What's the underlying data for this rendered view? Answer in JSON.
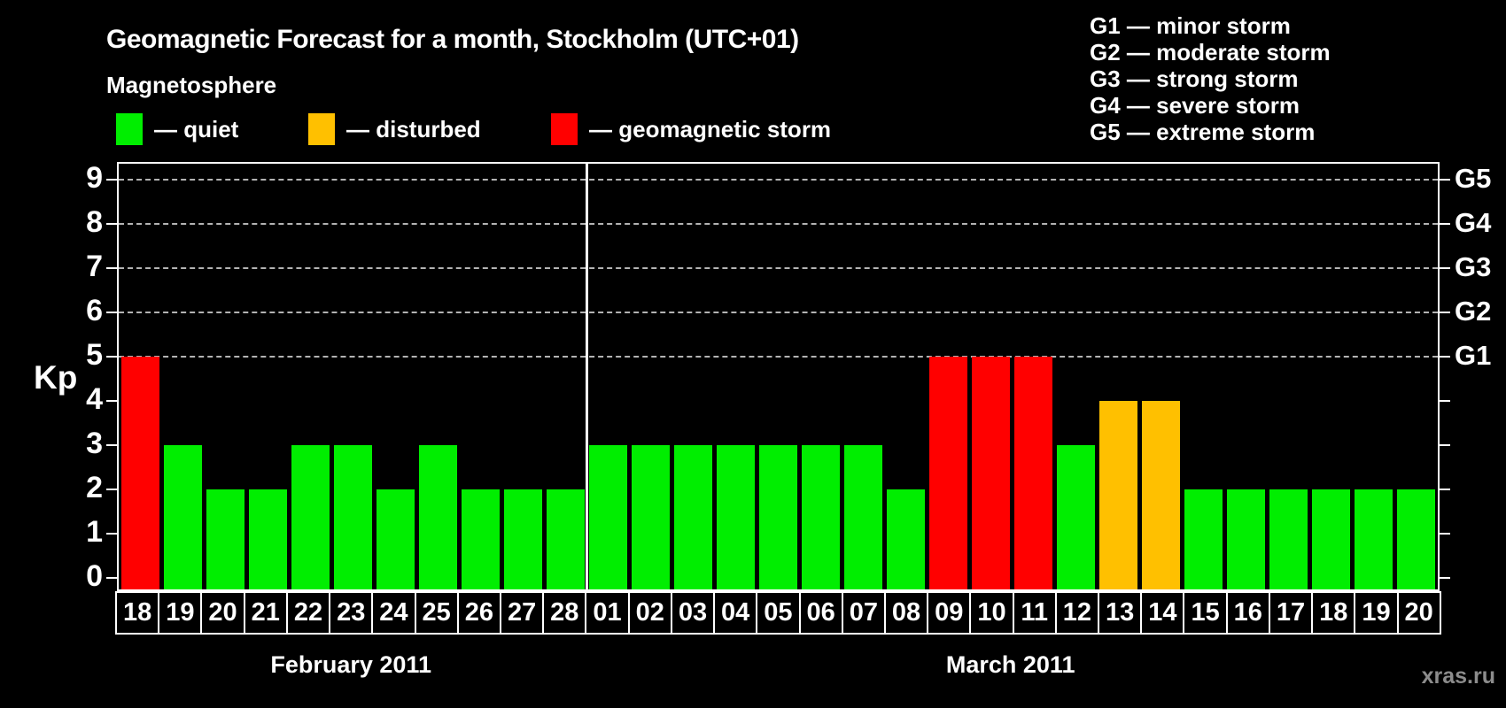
{
  "title": "Geomagnetic Forecast for a month, Stockholm (UTC+01)",
  "legend": {
    "heading": "Magnetosphere",
    "items": [
      {
        "name": "quiet",
        "label": "— quiet",
        "color": "#00ee00"
      },
      {
        "name": "disturbed",
        "label": "— disturbed",
        "color": "#ffc000"
      },
      {
        "name": "storm",
        "label": "— geomagnetic storm",
        "color": "#ff0000"
      }
    ]
  },
  "g_scale_legend": [
    "G1 — minor storm",
    "G2 — moderate storm",
    "G3 — strong storm",
    "G4 — severe storm",
    "G5 — extreme storm"
  ],
  "watermark": "xras.ru",
  "chart_data": {
    "type": "bar",
    "title": "Geomagnetic Forecast for a month, Stockholm (UTC+01)",
    "ylabel": "Kp",
    "ylim": [
      -0.3,
      9.4
    ],
    "yticks": [
      0,
      1,
      2,
      3,
      4,
      5,
      6,
      7,
      8,
      9
    ],
    "gridline_levels": [
      5,
      6,
      7,
      8,
      9
    ],
    "grid": "dashed horizontal at G-storm levels only",
    "legend_position": "top",
    "right_axis_labels": [
      {
        "level": 5,
        "label": "G1"
      },
      {
        "level": 6,
        "label": "G2"
      },
      {
        "level": 7,
        "label": "G3"
      },
      {
        "level": 8,
        "label": "G4"
      },
      {
        "level": 9,
        "label": "G5"
      }
    ],
    "status_colors": {
      "quiet": "#00ee00",
      "disturbed": "#ffc000",
      "storm": "#ff0000"
    },
    "months": [
      {
        "label": "February 2011",
        "days": [
          {
            "day": "18",
            "kp": 5,
            "status": "storm"
          },
          {
            "day": "19",
            "kp": 3,
            "status": "quiet"
          },
          {
            "day": "20",
            "kp": 2,
            "status": "quiet"
          },
          {
            "day": "21",
            "kp": 2,
            "status": "quiet"
          },
          {
            "day": "22",
            "kp": 3,
            "status": "quiet"
          },
          {
            "day": "23",
            "kp": 3,
            "status": "quiet"
          },
          {
            "day": "24",
            "kp": 2,
            "status": "quiet"
          },
          {
            "day": "25",
            "kp": 3,
            "status": "quiet"
          },
          {
            "day": "26",
            "kp": 2,
            "status": "quiet"
          },
          {
            "day": "27",
            "kp": 2,
            "status": "quiet"
          },
          {
            "day": "28",
            "kp": 2,
            "status": "quiet"
          }
        ]
      },
      {
        "label": "March 2011",
        "days": [
          {
            "day": "01",
            "kp": 3,
            "status": "quiet"
          },
          {
            "day": "02",
            "kp": 3,
            "status": "quiet"
          },
          {
            "day": "03",
            "kp": 3,
            "status": "quiet"
          },
          {
            "day": "04",
            "kp": 3,
            "status": "quiet"
          },
          {
            "day": "05",
            "kp": 3,
            "status": "quiet"
          },
          {
            "day": "06",
            "kp": 3,
            "status": "quiet"
          },
          {
            "day": "07",
            "kp": 3,
            "status": "quiet"
          },
          {
            "day": "08",
            "kp": 2,
            "status": "quiet"
          },
          {
            "day": "09",
            "kp": 5,
            "status": "storm"
          },
          {
            "day": "10",
            "kp": 5,
            "status": "storm"
          },
          {
            "day": "11",
            "kp": 5,
            "status": "storm"
          },
          {
            "day": "12",
            "kp": 3,
            "status": "quiet"
          },
          {
            "day": "13",
            "kp": 4,
            "status": "disturbed"
          },
          {
            "day": "14",
            "kp": 4,
            "status": "disturbed"
          },
          {
            "day": "15",
            "kp": 2,
            "status": "quiet"
          },
          {
            "day": "16",
            "kp": 2,
            "status": "quiet"
          },
          {
            "day": "17",
            "kp": 2,
            "status": "quiet"
          },
          {
            "day": "18",
            "kp": 2,
            "status": "quiet"
          },
          {
            "day": "19",
            "kp": 2,
            "status": "quiet"
          },
          {
            "day": "20",
            "kp": 2,
            "status": "quiet"
          }
        ]
      }
    ]
  }
}
